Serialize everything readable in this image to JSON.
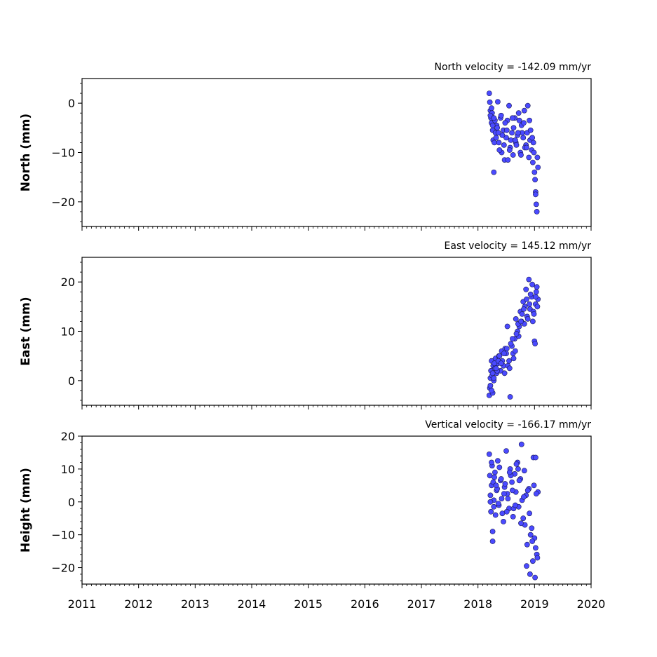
{
  "chart_data": [
    {
      "type": "scatter",
      "title": "North velocity = -142.09 mm/yr",
      "ylabel": "North (mm)",
      "xlim": [
        2011,
        2020
      ],
      "ylim": [
        -25,
        5
      ],
      "yticks": [
        "0",
        "−10",
        "−20"
      ],
      "ytick_values": [
        0,
        -10,
        -20
      ],
      "show_xtick_labels": false,
      "marker_color": "#4a4aff",
      "x": [
        2018.2,
        2018.21,
        2018.22,
        2018.23,
        2018.24,
        2018.25,
        2018.26,
        2018.27,
        2018.28,
        2018.3,
        2018.31,
        2018.33,
        2018.35,
        2018.37,
        2018.4,
        2018.42,
        2018.45,
        2018.47,
        2018.5,
        2018.52,
        2018.55,
        2018.57,
        2018.6,
        2018.62,
        2018.65,
        2018.67,
        2018.7,
        2018.72,
        2018.75,
        2018.77,
        2018.8,
        2018.82,
        2018.85,
        2018.87,
        2018.9,
        2018.92,
        2018.95,
        2018.97,
        2019.0,
        2019.02,
        2019.04,
        2019.06,
        2018.22,
        2018.26,
        2018.29,
        2018.34,
        2018.38,
        2018.43,
        2018.48,
        2018.53,
        2018.58,
        2018.63,
        2018.68,
        2018.73,
        2018.78,
        2018.83,
        2018.88,
        2018.93,
        2018.98,
        2019.01,
        2019.03,
        2018.24,
        2018.28,
        2018.32,
        2018.36,
        2018.41,
        2018.46,
        2018.51,
        2018.56,
        2018.61,
        2018.66,
        2018.71,
        2018.76,
        2018.81,
        2018.86,
        2018.91,
        2018.96,
        2018.99,
        2019.02,
        2019.05
      ],
      "y": [
        2.0,
        0.2,
        -1.5,
        -3.0,
        -4.0,
        -2.0,
        -5.5,
        -7.5,
        -14.0,
        -3.5,
        -6.0,
        -4.5,
        0.3,
        -8.0,
        -3.0,
        -10.0,
        -5.5,
        -11.5,
        -7.0,
        -3.5,
        -0.5,
        -9.0,
        -6.0,
        -10.5,
        -3.0,
        -8.0,
        -6.5,
        -2.0,
        -10.0,
        -4.5,
        -7.0,
        -1.5,
        -8.5,
        -6.0,
        -11.0,
        -7.5,
        -9.5,
        -12.0,
        -14.0,
        -18.0,
        -22.0,
        -13.0,
        -2.5,
        -4.5,
        -8.0,
        -5.0,
        -9.5,
        -6.5,
        -4.0,
        -11.5,
        -7.5,
        -5.0,
        -8.5,
        -3.5,
        -6.0,
        -9.0,
        -0.5,
        -5.5,
        -8.0,
        -15.5,
        -20.5,
        -1.0,
        -3.0,
        -7.0,
        -6.0,
        -2.5,
        -8.5,
        -5.5,
        -9.5,
        -3.0,
        -7.5,
        -6.0,
        -10.5,
        -4.0,
        -9.0,
        -3.5,
        -7.0,
        -10.0,
        -18.5,
        -11.0
      ]
    },
    {
      "type": "scatter",
      "title": "East velocity = 145.12 mm/yr",
      "ylabel": "East (mm)",
      "xlim": [
        2011,
        2020
      ],
      "ylim": [
        -5,
        25
      ],
      "yticks": [
        "20",
        "10",
        "0"
      ],
      "ytick_values": [
        20,
        10,
        0
      ],
      "show_xtick_labels": false,
      "marker_color": "#4a4aff",
      "x": [
        2018.2,
        2018.21,
        2018.22,
        2018.23,
        2018.24,
        2018.25,
        2018.26,
        2018.27,
        2018.28,
        2018.3,
        2018.31,
        2018.33,
        2018.35,
        2018.37,
        2018.4,
        2018.42,
        2018.45,
        2018.47,
        2018.5,
        2018.52,
        2018.55,
        2018.57,
        2018.6,
        2018.62,
        2018.65,
        2018.67,
        2018.7,
        2018.72,
        2018.75,
        2018.77,
        2018.8,
        2018.82,
        2018.85,
        2018.87,
        2018.9,
        2018.92,
        2018.95,
        2018.97,
        2019.0,
        2019.02,
        2019.04,
        2019.06,
        2018.22,
        2018.26,
        2018.29,
        2018.34,
        2018.38,
        2018.43,
        2018.48,
        2018.53,
        2018.58,
        2018.63,
        2018.68,
        2018.73,
        2018.78,
        2018.83,
        2018.88,
        2018.93,
        2018.98,
        2019.01,
        2019.03,
        2018.24,
        2018.28,
        2018.32,
        2018.36,
        2018.41,
        2018.46,
        2018.51,
        2018.56,
        2018.61,
        2018.66,
        2018.71,
        2018.76,
        2018.81,
        2018.86,
        2018.91,
        2018.96,
        2018.99,
        2019.02,
        2019.05
      ],
      "y": [
        -3.0,
        -1.5,
        0.5,
        2.0,
        4.0,
        1.0,
        -2.5,
        3.0,
        0.0,
        2.5,
        4.5,
        1.5,
        3.5,
        5.0,
        2.0,
        6.0,
        3.0,
        1.5,
        5.5,
        11.0,
        4.0,
        -3.3,
        7.0,
        5.5,
        8.5,
        12.5,
        10.0,
        9.0,
        14.0,
        12.0,
        16.0,
        11.5,
        18.5,
        13.0,
        20.5,
        14.5,
        17.0,
        12.0,
        8.0,
        15.5,
        19.0,
        16.5,
        -1.0,
        1.5,
        3.5,
        2.0,
        5.0,
        4.0,
        6.5,
        3.0,
        7.5,
        4.5,
        9.5,
        11.0,
        13.5,
        15.0,
        12.5,
        17.5,
        14.0,
        7.5,
        18.0,
        -2.0,
        0.5,
        2.5,
        4.0,
        3.5,
        5.5,
        6.5,
        2.5,
        8.5,
        6.0,
        11.5,
        12.0,
        14.5,
        16.5,
        15.5,
        19.5,
        13.5,
        17.0,
        15.0
      ]
    },
    {
      "type": "scatter",
      "title": "Vertical velocity = -166.17 mm/yr",
      "ylabel": "Height (mm)",
      "xlim": [
        2011,
        2020
      ],
      "ylim": [
        -25,
        20
      ],
      "yticks": [
        "20",
        "10",
        "0",
        "−10",
        "−20"
      ],
      "ytick_values": [
        20,
        10,
        0,
        -10,
        -20
      ],
      "xticks": [
        "2011",
        "2012",
        "2013",
        "2014",
        "2015",
        "2016",
        "2017",
        "2018",
        "2019",
        "2020"
      ],
      "xtick_values": [
        2011,
        2012,
        2013,
        2014,
        2015,
        2016,
        2017,
        2018,
        2019,
        2020
      ],
      "show_xtick_labels": true,
      "marker_color": "#4a4aff",
      "x": [
        2018.2,
        2018.21,
        2018.22,
        2018.23,
        2018.24,
        2018.25,
        2018.26,
        2018.27,
        2018.28,
        2018.3,
        2018.31,
        2018.33,
        2018.35,
        2018.37,
        2018.4,
        2018.42,
        2018.45,
        2018.47,
        2018.5,
        2018.52,
        2018.55,
        2018.57,
        2018.6,
        2018.62,
        2018.65,
        2018.67,
        2018.7,
        2018.72,
        2018.75,
        2018.77,
        2018.8,
        2018.82,
        2018.85,
        2018.87,
        2018.9,
        2018.92,
        2018.95,
        2018.97,
        2019.0,
        2019.02,
        2019.04,
        2019.06,
        2018.22,
        2018.26,
        2018.29,
        2018.34,
        2018.38,
        2018.43,
        2018.48,
        2018.53,
        2018.58,
        2018.63,
        2018.68,
        2018.73,
        2018.78,
        2018.83,
        2018.88,
        2018.93,
        2018.98,
        2019.01,
        2019.03,
        2018.24,
        2018.28,
        2018.32,
        2018.36,
        2018.41,
        2018.46,
        2018.51,
        2018.56,
        2018.61,
        2018.66,
        2018.71,
        2018.76,
        2018.81,
        2018.86,
        2018.91,
        2018.96,
        2018.99,
        2019.02,
        2019.05
      ],
      "y": [
        14.5,
        8.0,
        2.0,
        -3.0,
        5.0,
        11.0,
        -12.0,
        6.0,
        0.5,
        9.0,
        -4.0,
        3.5,
        12.5,
        -1.0,
        6.5,
        1.0,
        -6.0,
        4.5,
        15.5,
        2.5,
        -2.0,
        10.0,
        6.0,
        -4.5,
        8.5,
        3.0,
        12.0,
        -1.5,
        7.0,
        17.5,
        -5.0,
        9.5,
        2.0,
        -13.0,
        4.0,
        -22.0,
        -8.0,
        -18.0,
        -11.0,
        -14.0,
        -16.0,
        3.0,
        0.0,
        -9.0,
        7.5,
        4.0,
        10.5,
        -3.5,
        5.5,
        1.0,
        8.0,
        -2.0,
        11.5,
        6.5,
        0.5,
        -7.0,
        3.5,
        -10.0,
        13.5,
        -23.0,
        2.5,
        12.0,
        -1.5,
        5.0,
        -0.5,
        7.0,
        2.5,
        -3.0,
        9.0,
        3.5,
        -1.0,
        10.0,
        -6.5,
        1.5,
        -19.5,
        -3.5,
        -12.0,
        5.0,
        13.5,
        -17.0
      ]
    }
  ]
}
